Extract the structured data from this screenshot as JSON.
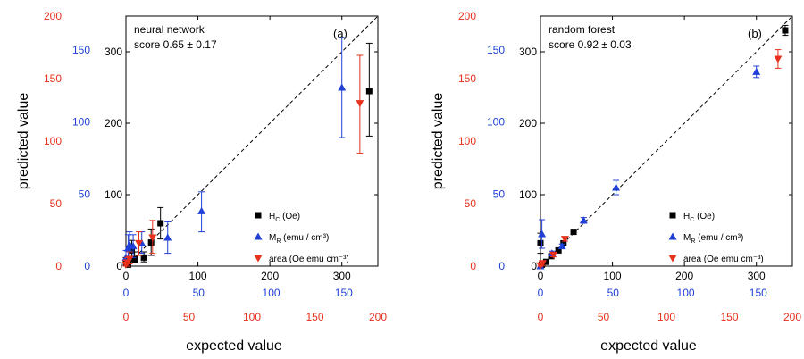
{
  "colors": {
    "hc": "#000000",
    "mr": "#1f3fd6",
    "area": "#e8301c",
    "axis": "#000000"
  },
  "chart_data": [
    {
      "type": "scatter",
      "panel_label": "(a)",
      "annotation_line1": "neural network",
      "annotation_line2": "score 0.65 ± 0.17",
      "xlabel": "expected value",
      "ylabel": "predicted value",
      "xlim": [
        0,
        350
      ],
      "ylim": [
        0,
        350
      ],
      "black_ticks": [
        "0",
        "100",
        "200",
        "300"
      ],
      "blue_ticks": [
        "0",
        "50",
        "100",
        "150"
      ],
      "red_ticks": [
        "0",
        "50",
        "100",
        "150",
        "200"
      ],
      "black_tick_values": [
        0,
        100,
        200,
        300
      ],
      "blue_tick_values": [
        0,
        50,
        100,
        150
      ],
      "red_tick_values": [
        0,
        50,
        100,
        150,
        200
      ],
      "blue_scale_max": 150,
      "red_scale_max": 200,
      "legend": [
        "H_C (Oe)",
        "M_R (emu / cm³)",
        "area (Oe emu cm⁻³)"
      ],
      "series": [
        {
          "key": "hc",
          "marker": "square",
          "points": [
            {
              "x": 0,
              "y": 5,
              "lo": 0,
              "hi": 12
            },
            {
              "x": 3,
              "y": 2,
              "lo": 0,
              "hi": 8
            },
            {
              "x": 8,
              "y": 22,
              "lo": 10,
              "hi": 36
            },
            {
              "x": 12,
              "y": 10,
              "lo": 5,
              "hi": 20
            },
            {
              "x": 25,
              "y": 12,
              "lo": 6,
              "hi": 20
            },
            {
              "x": 35,
              "y": 33,
              "lo": 15,
              "hi": 52
            },
            {
              "x": 48,
              "y": 60,
              "lo": 38,
              "hi": 82
            },
            {
              "x": 338,
              "y": 245,
              "lo": 182,
              "hi": 312
            }
          ]
        },
        {
          "key": "mr",
          "marker": "triangle-up",
          "points": [
            {
              "x": 0,
              "y": 12,
              "lo": 4,
              "hi": 22
            },
            {
              "x": 3,
              "y": 25,
              "lo": 10,
              "hi": 44
            },
            {
              "x": 5,
              "y": 30,
              "lo": 12,
              "hi": 48
            },
            {
              "x": 10,
              "y": 28,
              "lo": 12,
              "hi": 44
            },
            {
              "x": 22,
              "y": 32,
              "lo": 18,
              "hi": 48
            },
            {
              "x": 58,
              "y": 40,
              "lo": 18,
              "hi": 62
            },
            {
              "x": 105,
              "y": 77,
              "lo": 48,
              "hi": 104
            },
            {
              "x": 300,
              "y": 250,
              "lo": 180,
              "hi": 320
            }
          ]
        },
        {
          "key": "area",
          "marker": "triangle-down",
          "points": [
            {
              "x": 0,
              "y": 2,
              "lo": 0,
              "hi": 8
            },
            {
              "x": 2,
              "y": 5,
              "lo": 0,
              "hi": 12
            },
            {
              "x": 5,
              "y": 10,
              "lo": 3,
              "hi": 20
            },
            {
              "x": 18,
              "y": 32,
              "lo": 15,
              "hi": 48
            },
            {
              "x": 37,
              "y": 40,
              "lo": 18,
              "hi": 64
            },
            {
              "x": 325,
              "y": 228,
              "lo": 158,
              "hi": 295
            }
          ]
        }
      ]
    },
    {
      "type": "scatter",
      "panel_label": "(b)",
      "annotation_line1": "random forest",
      "annotation_line2": "score 0.92 ± 0.03",
      "xlabel": "expected value",
      "ylabel": "predicted value",
      "xlim": [
        0,
        350
      ],
      "ylim": [
        0,
        350
      ],
      "black_ticks": [
        "0",
        "100",
        "200",
        "300"
      ],
      "blue_ticks": [
        "0",
        "50",
        "100",
        "150"
      ],
      "red_ticks": [
        "0",
        "50",
        "100",
        "150",
        "200"
      ],
      "black_tick_values": [
        0,
        100,
        200,
        300
      ],
      "blue_tick_values": [
        0,
        50,
        100,
        150
      ],
      "red_tick_values": [
        0,
        50,
        100,
        150,
        200
      ],
      "blue_scale_max": 150,
      "red_scale_max": 200,
      "legend": [
        "H_C (Oe)",
        "M_R (emu / cm³)",
        "area (Oe emu cm⁻³)"
      ],
      "series": [
        {
          "key": "hc",
          "marker": "square",
          "points": [
            {
              "x": 0,
              "y": 32,
              "lo": 18,
              "hi": 46
            },
            {
              "x": 2,
              "y": 2,
              "lo": 0,
              "hi": 6
            },
            {
              "x": 8,
              "y": 6,
              "lo": 3,
              "hi": 9
            },
            {
              "x": 15,
              "y": 14,
              "lo": 11,
              "hi": 17
            },
            {
              "x": 25,
              "y": 22,
              "lo": 19,
              "hi": 25
            },
            {
              "x": 32,
              "y": 32,
              "lo": 29,
              "hi": 35
            },
            {
              "x": 46,
              "y": 48,
              "lo": 45,
              "hi": 51
            },
            {
              "x": 340,
              "y": 330,
              "lo": 323,
              "hi": 337
            }
          ]
        },
        {
          "key": "mr",
          "marker": "triangle-up",
          "points": [
            {
              "x": 0,
              "y": 0,
              "lo": 0,
              "hi": 3
            },
            {
              "x": 2,
              "y": 45,
              "lo": 25,
              "hi": 65
            },
            {
              "x": 16,
              "y": 18,
              "lo": 15,
              "hi": 21
            },
            {
              "x": 30,
              "y": 28,
              "lo": 25,
              "hi": 31
            },
            {
              "x": 60,
              "y": 64,
              "lo": 60,
              "hi": 68
            },
            {
              "x": 105,
              "y": 110,
              "lo": 100,
              "hi": 120
            },
            {
              "x": 300,
              "y": 272,
              "lo": 264,
              "hi": 280
            }
          ]
        },
        {
          "key": "area",
          "marker": "triangle-down",
          "points": [
            {
              "x": 0,
              "y": 1,
              "lo": 0,
              "hi": 3
            },
            {
              "x": 3,
              "y": 4,
              "lo": 1,
              "hi": 7
            },
            {
              "x": 18,
              "y": 16,
              "lo": 13,
              "hi": 19
            },
            {
              "x": 34,
              "y": 38,
              "lo": 35,
              "hi": 41
            },
            {
              "x": 330,
              "y": 290,
              "lo": 277,
              "hi": 303
            }
          ]
        }
      ]
    }
  ]
}
